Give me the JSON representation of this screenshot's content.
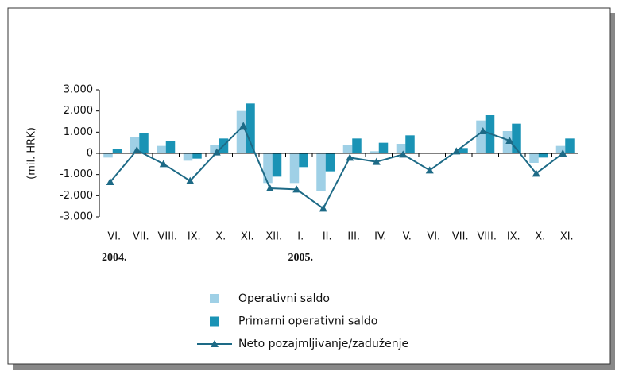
{
  "chart_data": {
    "type": "bar_line",
    "y_label": "(mil. HRK)",
    "categories": [
      "VI.",
      "VII.",
      "VIII.",
      "IX.",
      "X.",
      "XI.",
      "XII.",
      "I.",
      "II.",
      "III.",
      "IV.",
      "V.",
      "VI.",
      "VII.",
      "VIII.",
      "IX.",
      "X.",
      "XI."
    ],
    "years": [
      "2004.",
      null,
      null,
      null,
      null,
      null,
      null,
      "2005.",
      null,
      null,
      null,
      null,
      null,
      null,
      null,
      null,
      null,
      null
    ],
    "series": [
      {
        "name": "Operativni saldo",
        "kind": "bar",
        "color": "#9fd0e6",
        "values": [
          -200,
          750,
          350,
          -350,
          400,
          2000,
          -1400,
          -1400,
          -1800,
          400,
          100,
          450,
          0,
          0,
          1550,
          1050,
          -450,
          350
        ]
      },
      {
        "name": "Primarni operativni saldo",
        "kind": "bar",
        "color": "#1a93b5",
        "values": [
          200,
          950,
          600,
          -250,
          700,
          2350,
          -1100,
          -650,
          -850,
          700,
          500,
          850,
          0,
          250,
          1800,
          1400,
          -200,
          700
        ]
      },
      {
        "name": "Neto pozajmljivanje/zaduženje",
        "kind": "line",
        "color": "#1d6a86",
        "values": [
          -1350,
          150,
          -500,
          -1300,
          50,
          1300,
          -1650,
          -1700,
          -2600,
          -200,
          -400,
          -50,
          -800,
          100,
          1050,
          600,
          -950,
          0
        ]
      }
    ],
    "ylim": [
      -3000,
      3000
    ],
    "yticks": [
      {
        "value": -3000,
        "label": "-3.000"
      },
      {
        "value": -2000,
        "label": "-2.000"
      },
      {
        "value": -1000,
        "label": "-1.000"
      },
      0,
      {
        "value": 1000,
        "label": "1.000"
      },
      {
        "value": 2000,
        "label": "2.000"
      },
      {
        "value": 3000,
        "label": "3.000"
      }
    ]
  }
}
